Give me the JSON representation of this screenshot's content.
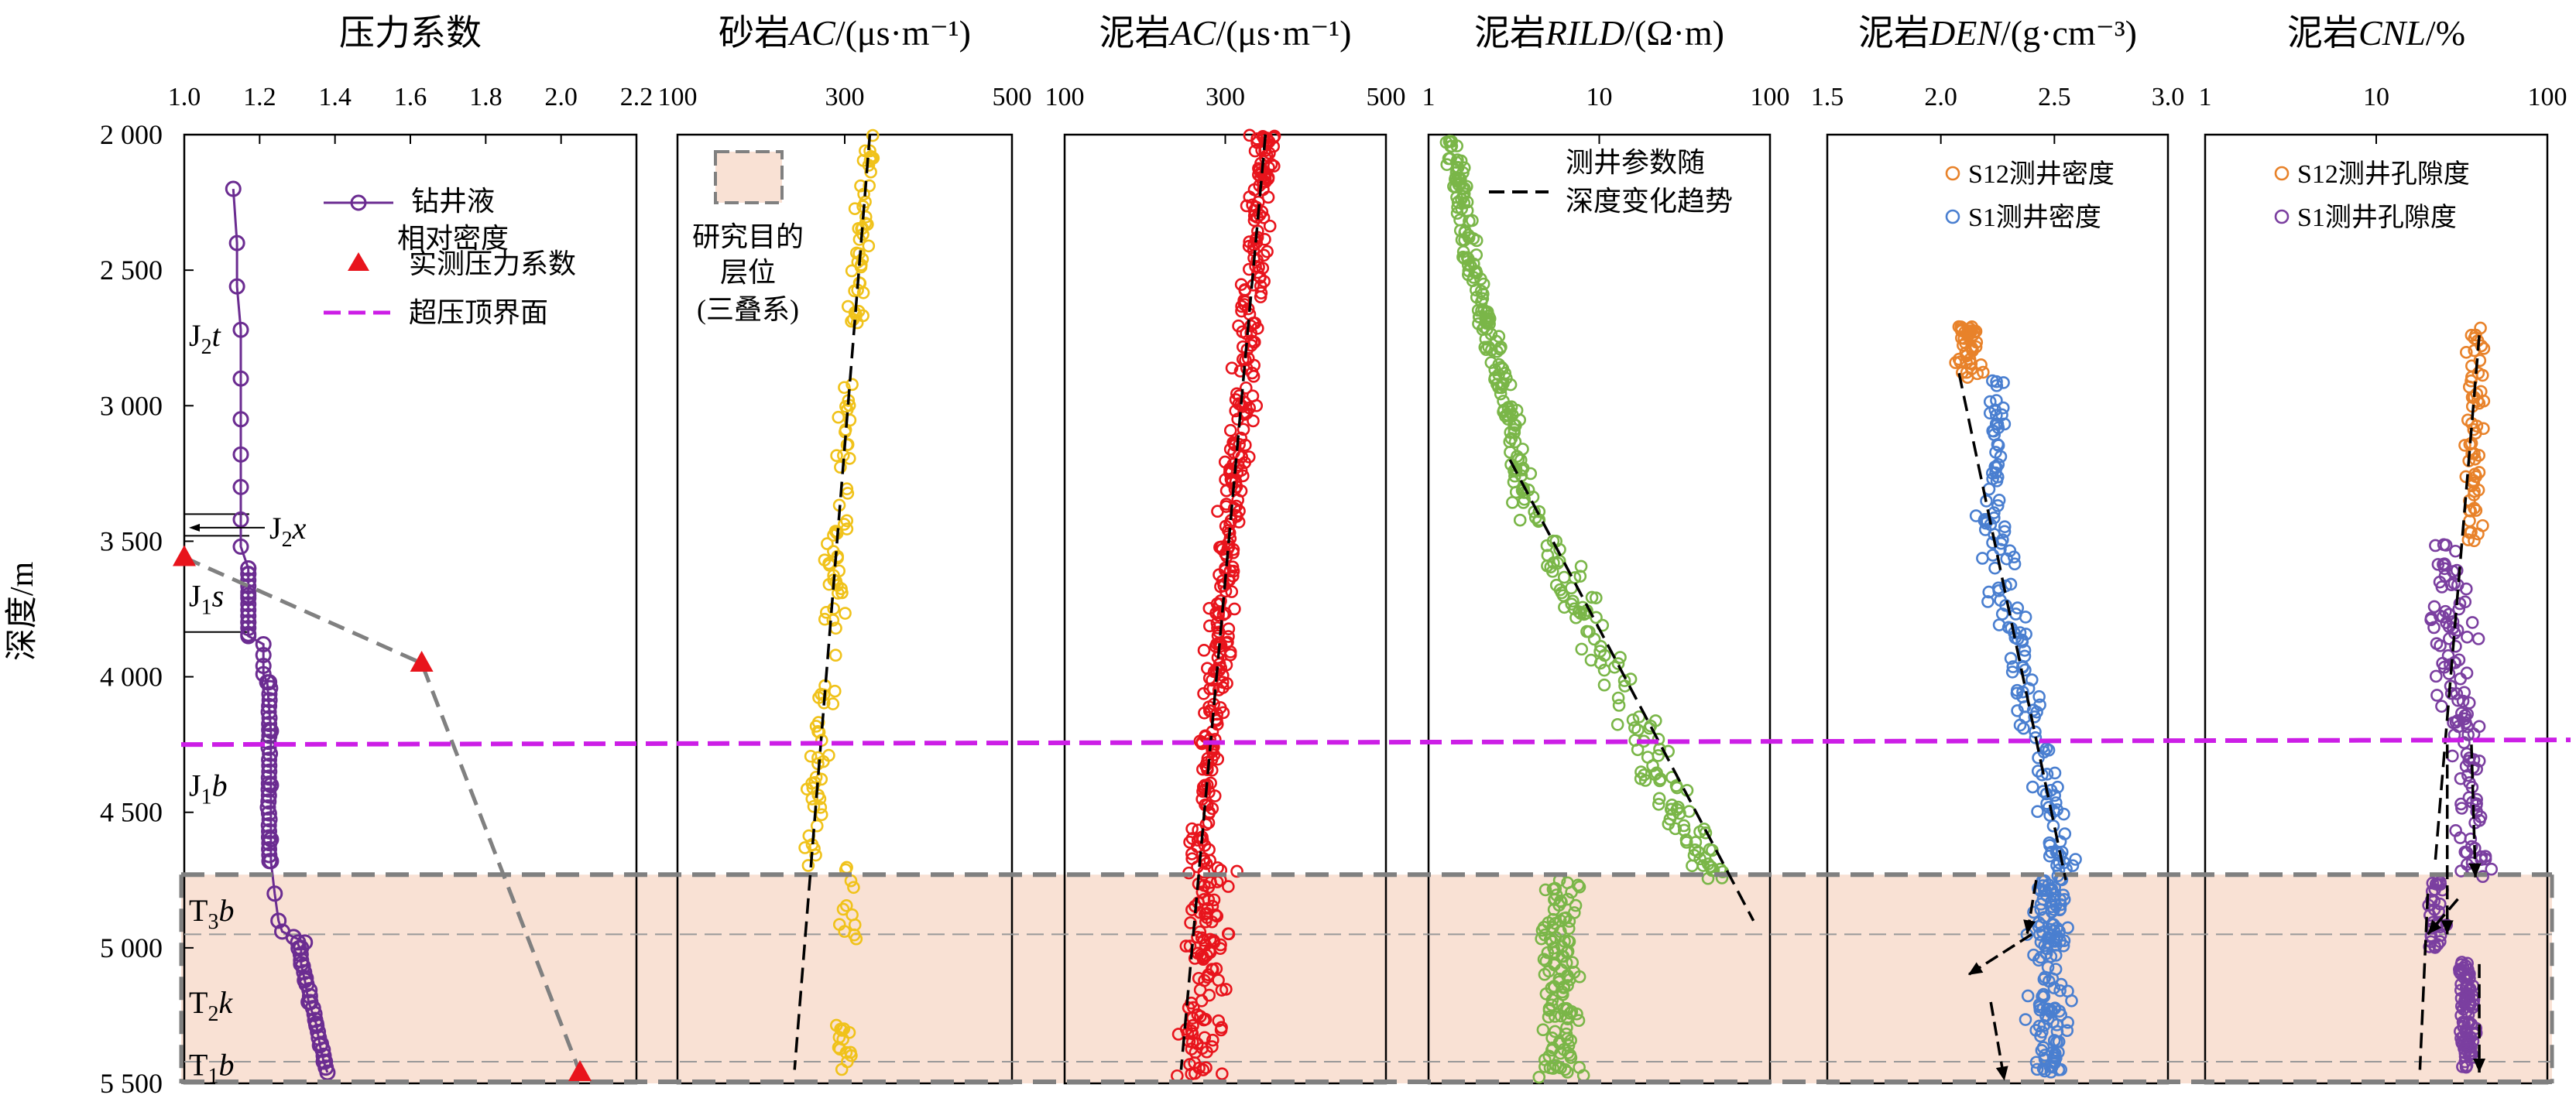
{
  "depth_axis": {
    "label": "深度/m",
    "range": [
      2000,
      5500
    ],
    "ticks": [
      2000,
      2500,
      3000,
      3500,
      4000,
      4500,
      5000,
      5500
    ],
    "tick_labels": [
      "2 000",
      "2 500",
      "3 000",
      "3 500",
      "4 000",
      "4 500",
      "5 000",
      "5 500"
    ]
  },
  "overpressure_top_depth": 4250,
  "target_interval": {
    "top": 4730,
    "bottom": 5500,
    "color": "#f9e1d4",
    "label_lines": [
      "研究目的",
      "层位",
      "(三叠系)"
    ]
  },
  "colors": {
    "purple": "#6b2c91",
    "red_marker": "#e8141c",
    "magenta": "#cc1ee6",
    "gray_dash": "#808080",
    "sand": "#f0c21a",
    "red": "#e8141c",
    "green": "#7ab648",
    "orange": "#e8822a",
    "blue": "#4a7fd0",
    "violet": "#7b3fa0"
  },
  "panels": [
    {
      "key": "pressure",
      "title": "压力系数",
      "title_italic": "",
      "title_unit": "",
      "scale": "linear",
      "xlim": [
        1.0,
        2.2
      ],
      "ticks": [
        1.0,
        1.2,
        1.4,
        1.6,
        1.8,
        2.0,
        2.2
      ],
      "tick_labels": [
        "1.0",
        "1.2",
        "1.4",
        "1.6",
        "1.8",
        "2.0",
        "2.2"
      ]
    },
    {
      "key": "sand_ac",
      "title": "砂岩",
      "title_italic": "AC",
      "title_unit": "/(μs·m⁻¹)",
      "scale": "linear",
      "xlim": [
        100,
        500
      ],
      "ticks": [
        100,
        300,
        500
      ],
      "tick_labels": [
        "100",
        "300",
        "500"
      ]
    },
    {
      "key": "mud_ac",
      "title": "泥岩",
      "title_italic": "AC",
      "title_unit": "/(μs·m⁻¹)",
      "scale": "linear",
      "xlim": [
        100,
        500
      ],
      "ticks": [
        100,
        300,
        500
      ],
      "tick_labels": [
        "100",
        "300",
        "500"
      ]
    },
    {
      "key": "rild",
      "title": "泥岩",
      "title_italic": "RILD",
      "title_unit": "/(Ω·m)",
      "scale": "log",
      "xlim": [
        1,
        100
      ],
      "ticks": [
        1,
        10,
        100
      ],
      "tick_labels": [
        "1",
        "10",
        "100"
      ]
    },
    {
      "key": "den",
      "title": "泥岩",
      "title_italic": "DEN",
      "title_unit": "/(g·cm⁻³)",
      "scale": "linear",
      "xlim": [
        1.5,
        3.0
      ],
      "ticks": [
        1.5,
        2.0,
        2.5,
        3.0
      ],
      "tick_labels": [
        "1.5",
        "2.0",
        "2.5",
        "3.0"
      ]
    },
    {
      "key": "cnl",
      "title": "泥岩",
      "title_italic": "CNL",
      "title_unit": "/%",
      "scale": "log",
      "xlim": [
        1,
        100
      ],
      "ticks": [
        1,
        10,
        100
      ],
      "tick_labels": [
        "1",
        "10",
        "100"
      ]
    }
  ],
  "legends": {
    "pressure": [
      {
        "label_lines": [
          "钻井液",
          "相对密度"
        ],
        "kind": "line-circle"
      },
      {
        "label_lines": [
          "实测压力系数"
        ],
        "kind": "triangle"
      },
      {
        "label_lines": [
          "超压顶界面"
        ],
        "kind": "magenta-dash"
      }
    ],
    "rild": [
      {
        "label_lines": [
          "测井参数随",
          "深度变化趋势"
        ],
        "kind": "black-dash"
      }
    ],
    "den": [
      {
        "label_lines": [
          "S12测井密度"
        ],
        "kind": "orange-circle"
      },
      {
        "label_lines": [
          "S1测井密度"
        ],
        "kind": "blue-circle"
      }
    ],
    "cnl": [
      {
        "label_lines": [
          "S12测井孔隙度"
        ],
        "kind": "orange-circle"
      },
      {
        "label_lines": [
          "S1测井孔隙度"
        ],
        "kind": "violet-circle"
      }
    ]
  },
  "strata": [
    {
      "main": "J",
      "sub": "2",
      "suffix": "t",
      "label_depth": 2740
    },
    {
      "main": "J",
      "sub": "2",
      "suffix": "x",
      "label_depth": 3450
    },
    {
      "main": "J",
      "sub": "1",
      "suffix": "s",
      "label_depth": 3700
    },
    {
      "main": "J",
      "sub": "1",
      "suffix": "b",
      "label_depth": 4400
    },
    {
      "main": "T",
      "sub": "3",
      "suffix": "b",
      "label_depth": 4860
    },
    {
      "main": "T",
      "sub": "2",
      "suffix": "k",
      "label_depth": 5200
    },
    {
      "main": "T",
      "sub": "1",
      "suffix": "b",
      "label_depth": 5430
    }
  ],
  "chart_data": {
    "type": "scatter",
    "drilling_fluid_density": {
      "depths": [
        2200,
        2400,
        2560,
        2720,
        2900,
        3050,
        3180,
        3300,
        3420,
        3520,
        3600,
        3620,
        3700,
        3800,
        3850,
        3880,
        3920,
        3960,
        3990,
        4020,
        4200,
        4400,
        4600,
        4680,
        4800,
        4900,
        4940,
        4960,
        4980,
        5000,
        5060,
        5120,
        5200,
        5280,
        5360,
        5420,
        5460
      ],
      "values": [
        1.13,
        1.14,
        1.14,
        1.15,
        1.15,
        1.15,
        1.15,
        1.15,
        1.15,
        1.15,
        1.17,
        1.17,
        1.17,
        1.17,
        1.17,
        1.21,
        1.21,
        1.21,
        1.21,
        1.22,
        1.23,
        1.23,
        1.23,
        1.23,
        1.24,
        1.25,
        1.26,
        1.29,
        1.32,
        1.31,
        1.31,
        1.32,
        1.33,
        1.35,
        1.36,
        1.37,
        1.38
      ]
    },
    "measured_pressure": {
      "depths": [
        3560,
        3950,
        5460
      ],
      "values": [
        1.0,
        1.63,
        2.05
      ]
    },
    "pressure_trend": {
      "depths": [
        3560,
        3950,
        5460
      ],
      "values": [
        1.0,
        1.63,
        2.05
      ]
    },
    "sand_ac": {
      "trend": [
        [
          330,
          2000
        ],
        [
          240,
          5450
        ]
      ]
    },
    "mud_ac": {
      "trend": [
        [
          350,
          2000
        ],
        [
          245,
          5450
        ]
      ]
    },
    "rild": {
      "trend": [
        [
          3,
          3200
        ],
        [
          80,
          4900
        ]
      ]
    },
    "den_s12": {
      "depth_range": [
        2700,
        2900
      ]
    },
    "den_s1": {
      "trend": [
        [
          2.08,
          2880
        ],
        [
          2.55,
          4750
        ]
      ]
    },
    "cnl_s12": {
      "depth_range": [
        2700,
        3500
      ]
    },
    "cnl_s1": {
      "trend": [
        [
          20,
          3000
        ],
        [
          40,
          4750
        ]
      ]
    }
  }
}
